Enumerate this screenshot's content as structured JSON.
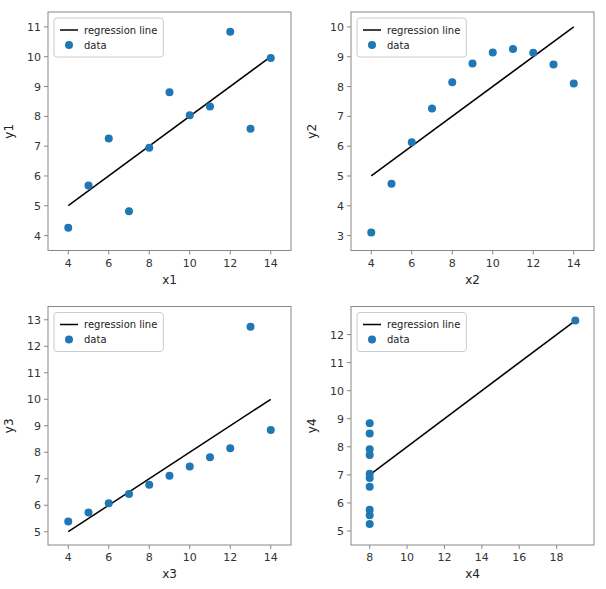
{
  "chart_data": [
    {
      "type": "scatter",
      "xlabel": "x1",
      "ylabel": "y1",
      "xlim": [
        3,
        15
      ],
      "ylim": [
        3.5,
        11.5
      ],
      "xticks": [
        4,
        6,
        8,
        10,
        12,
        14
      ],
      "yticks": [
        4,
        5,
        6,
        7,
        8,
        9,
        10,
        11
      ],
      "grid": false,
      "legend": "upper left",
      "series": [
        {
          "name": "regression line",
          "type": "line",
          "color": "black",
          "x": [
            4,
            14
          ],
          "values": [
            5.005,
            10.0004545
          ]
        },
        {
          "name": "data",
          "type": "scatter",
          "color": "#1f77b4",
          "x": [
            4,
            5,
            6,
            7,
            8,
            9,
            10,
            11,
            12,
            13,
            14
          ],
          "values": [
            4.26,
            5.68,
            7.26,
            4.82,
            6.95,
            8.81,
            8.04,
            8.33,
            10.84,
            7.58,
            9.96
          ]
        }
      ]
    },
    {
      "type": "scatter",
      "xlabel": "x2",
      "ylabel": "y2",
      "xlim": [
        3,
        15
      ],
      "ylim": [
        2.5,
        10.5
      ],
      "xticks": [
        4,
        6,
        8,
        10,
        12,
        14
      ],
      "yticks": [
        3,
        4,
        5,
        6,
        7,
        8,
        9,
        10
      ],
      "grid": false,
      "legend": "upper left",
      "series": [
        {
          "name": "regression line",
          "type": "line",
          "color": "black",
          "x": [
            4,
            14
          ],
          "values": [
            5.0009091,
            10.0009091
          ]
        },
        {
          "name": "data",
          "type": "scatter",
          "color": "#1f77b4",
          "x": [
            4,
            5,
            6,
            7,
            8,
            9,
            10,
            11,
            12,
            13,
            14
          ],
          "values": [
            3.1,
            4.74,
            6.13,
            7.26,
            8.14,
            8.77,
            9.14,
            9.26,
            9.13,
            8.74,
            8.1
          ]
        }
      ]
    },
    {
      "type": "scatter",
      "xlabel": "x3",
      "ylabel": "y3",
      "xlim": [
        3,
        15
      ],
      "ylim": [
        4.5,
        13.5
      ],
      "xticks": [
        4,
        6,
        8,
        10,
        12,
        14
      ],
      "yticks": [
        5,
        6,
        7,
        8,
        9,
        10,
        11,
        12,
        13
      ],
      "grid": false,
      "legend": "upper left",
      "series": [
        {
          "name": "regression line",
          "type": "line",
          "color": "black",
          "x": [
            4,
            14
          ],
          "values": [
            5.0013636,
            9.9986364
          ]
        },
        {
          "name": "data",
          "type": "scatter",
          "color": "#1f77b4",
          "x": [
            4,
            5,
            6,
            7,
            8,
            9,
            10,
            11,
            12,
            13,
            14
          ],
          "values": [
            5.39,
            5.73,
            6.08,
            6.42,
            6.77,
            7.11,
            7.46,
            7.81,
            8.15,
            12.74,
            8.84
          ]
        }
      ]
    },
    {
      "type": "scatter",
      "xlabel": "x4",
      "ylabel": "y4",
      "xlim": [
        7,
        20
      ],
      "ylim": [
        4.5,
        13
      ],
      "xticks": [
        8,
        10,
        12,
        14,
        16,
        18
      ],
      "yticks": [
        5,
        6,
        7,
        8,
        9,
        10,
        11,
        12
      ],
      "grid": false,
      "legend": "upper left",
      "series": [
        {
          "name": "regression line",
          "type": "line",
          "color": "black",
          "x": [
            8,
            19
          ],
          "values": [
            7.001,
            12.5
          ]
        },
        {
          "name": "data",
          "type": "scatter",
          "color": "#1f77b4",
          "x": [
            8,
            8,
            8,
            8,
            8,
            8,
            8,
            8,
            8,
            8,
            19
          ],
          "values": [
            6.58,
            5.76,
            7.71,
            8.84,
            8.47,
            7.04,
            5.25,
            5.56,
            7.91,
            6.89,
            12.5
          ]
        }
      ]
    }
  ]
}
